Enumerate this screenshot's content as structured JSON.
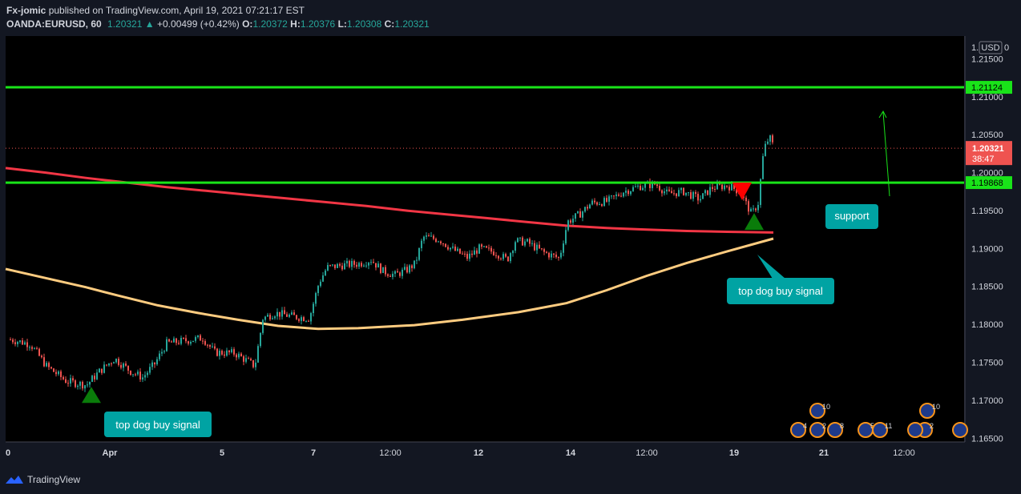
{
  "header": {
    "publisher": "Fx-jomic",
    "published_text": "published on TradingView.com, April 19, 2021 07:21:17 EST",
    "symbol": "OANDA:EURUSD, 60",
    "last": "1.20321",
    "change": "+0.00499 (+0.42%)",
    "o_label": "O:",
    "o_value": "1.20372",
    "h_label": "H:",
    "h_value": "1.20376",
    "l_label": "L:",
    "l_value": "1.20308",
    "c_label": "C:",
    "c_value": "1.20321"
  },
  "footer": {
    "brand": "TradingView"
  },
  "chart_data": {
    "type": "candlestick",
    "currency_label": "USD",
    "y_axis_top_tick": "1.",
    "y_axis_top_suffix": "0",
    "ylim": [
      1.1645,
      1.218
    ],
    "y_ticks": [
      "1.21500",
      "1.21000",
      "1.20500",
      "1.20000",
      "1.19500",
      "1.19000",
      "1.18500",
      "1.18000",
      "1.17500",
      "1.17000",
      "1.16500"
    ],
    "x_ticks": [
      "0",
      "Apr",
      "5",
      "7",
      "12:00",
      "12",
      "14",
      "12:00",
      "19",
      "21",
      "12:00"
    ],
    "price_levels": [
      {
        "label": "1.21124",
        "value": 1.21124,
        "color": "#19e319"
      },
      {
        "label": "1.19868",
        "value": 1.19868,
        "color": "#19e319"
      }
    ],
    "current_price": {
      "label": "1.20321",
      "countdown": "38:47",
      "value": 1.20321,
      "color": "#ef5350"
    },
    "moving_averages": [
      {
        "color": "#f23645",
        "points": [
          [
            0,
            1.2006
          ],
          [
            50,
            1.2
          ],
          [
            100,
            1.1993
          ],
          [
            150,
            1.1987
          ],
          [
            200,
            1.1981
          ],
          [
            250,
            1.1976
          ],
          [
            300,
            1.1971
          ],
          [
            350,
            1.1966
          ],
          [
            400,
            1.1961
          ],
          [
            450,
            1.1956
          ],
          [
            500,
            1.195
          ],
          [
            550,
            1.1945
          ],
          [
            600,
            1.194
          ],
          [
            650,
            1.1935
          ],
          [
            700,
            1.193
          ],
          [
            750,
            1.1927
          ],
          [
            800,
            1.1925
          ],
          [
            850,
            1.1923
          ],
          [
            900,
            1.1922
          ],
          [
            958,
            1.1921
          ]
        ]
      },
      {
        "color": "#ffcc80",
        "points": [
          [
            0,
            1.1873
          ],
          [
            50,
            1.1861
          ],
          [
            100,
            1.1849
          ],
          [
            140,
            1.1838
          ],
          [
            190,
            1.1825
          ],
          [
            240,
            1.1815
          ],
          [
            290,
            1.1806
          ],
          [
            340,
            1.1798
          ],
          [
            390,
            1.1794
          ],
          [
            440,
            1.1795
          ],
          [
            510,
            1.1799
          ],
          [
            570,
            1.1806
          ],
          [
            640,
            1.1816
          ],
          [
            700,
            1.1828
          ],
          [
            750,
            1.1845
          ],
          [
            800,
            1.1864
          ],
          [
            850,
            1.1881
          ],
          [
            900,
            1.1896
          ],
          [
            958,
            1.1913
          ]
        ]
      }
    ],
    "price_path": [
      [
        5,
        1.178
      ],
      [
        30,
        1.1774
      ],
      [
        50,
        1.1745
      ],
      [
        75,
        1.1725
      ],
      [
        100,
        1.172
      ],
      [
        115,
        1.1737
      ],
      [
        135,
        1.1755
      ],
      [
        155,
        1.1738
      ],
      [
        170,
        1.173
      ],
      [
        185,
        1.1748
      ],
      [
        200,
        1.1775
      ],
      [
        220,
        1.1778
      ],
      [
        245,
        1.1782
      ],
      [
        260,
        1.1763
      ],
      [
        285,
        1.1762
      ],
      [
        300,
        1.1752
      ],
      [
        310,
        1.1745
      ],
      [
        320,
        1.1808
      ],
      [
        335,
        1.1815
      ],
      [
        360,
        1.181
      ],
      [
        378,
        1.1808
      ],
      [
        390,
        1.1855
      ],
      [
        400,
        1.1875
      ],
      [
        420,
        1.1878
      ],
      [
        440,
        1.188
      ],
      [
        455,
        1.1885
      ],
      [
        470,
        1.187
      ],
      [
        485,
        1.1865
      ],
      [
        500,
        1.1872
      ],
      [
        510,
        1.188
      ],
      [
        520,
        1.1915
      ],
      [
        540,
        1.1912
      ],
      [
        555,
        1.19
      ],
      [
        575,
        1.1888
      ],
      [
        590,
        1.19
      ],
      [
        610,
        1.1895
      ],
      [
        625,
        1.1885
      ],
      [
        635,
        1.191
      ],
      [
        650,
        1.1908
      ],
      [
        670,
        1.1895
      ],
      [
        690,
        1.1887
      ],
      [
        700,
        1.1935
      ],
      [
        715,
        1.1945
      ],
      [
        730,
        1.196
      ],
      [
        750,
        1.1962
      ],
      [
        770,
        1.1975
      ],
      [
        790,
        1.1982
      ],
      [
        810,
        1.1985
      ],
      [
        825,
        1.1972
      ],
      [
        845,
        1.1975
      ],
      [
        865,
        1.1965
      ],
      [
        880,
        1.198
      ],
      [
        900,
        1.1983
      ],
      [
        915,
        1.1975
      ],
      [
        930,
        1.1945
      ],
      [
        938,
        1.196
      ],
      [
        945,
        1.203
      ],
      [
        952,
        1.2047
      ],
      [
        958,
        1.2032
      ]
    ],
    "annotations": [
      {
        "text": "top dog buy signal",
        "value": 1.1695
      },
      {
        "text": "top dog buy signal",
        "value": 1.1875
      },
      {
        "text": "support",
        "value": 1.196
      }
    ],
    "event_markers": [
      "4",
      "2",
      "8",
      "10",
      "5",
      "11",
      "10",
      "2"
    ]
  }
}
